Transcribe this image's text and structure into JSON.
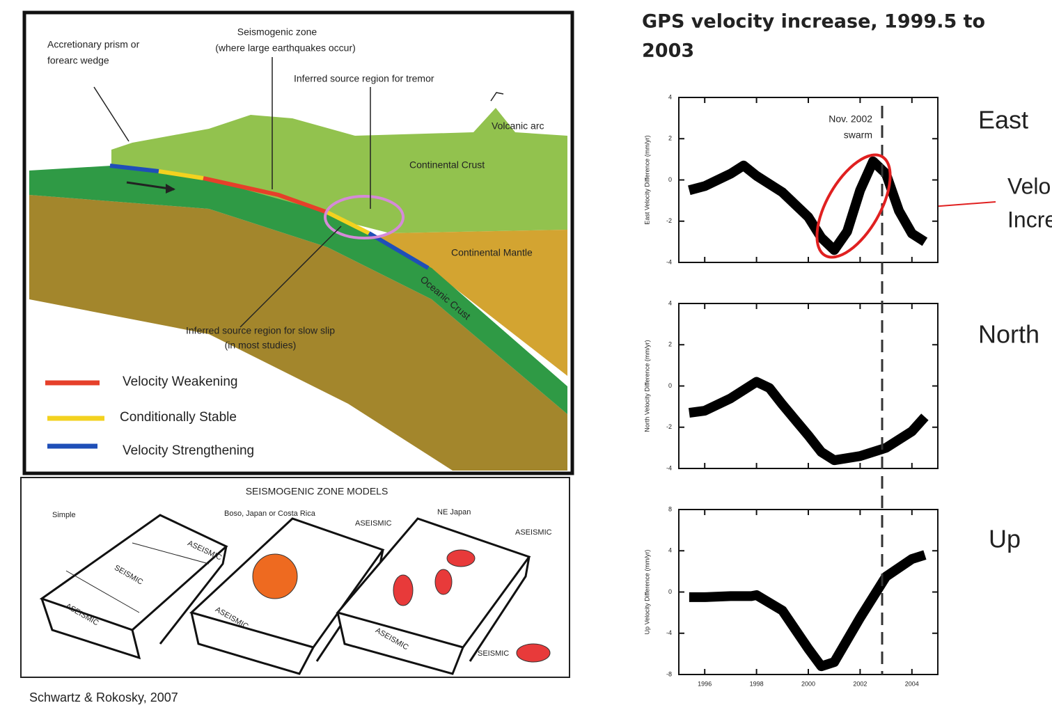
{
  "slide": {
    "title": [
      "GPS velocity increase, 1999.5 to",
      "2003"
    ],
    "credit": "Schwartz & Rokosky, 2007",
    "callout": [
      "Velo",
      "Incre"
    ]
  },
  "diagram": {
    "labels": {
      "prism": [
        "Accretionary prism or",
        "forearc  wedge"
      ],
      "seismogenic": [
        "Seismogenic zone",
        "(where large earthquakes occur)"
      ],
      "tremor": "Inferred source region for tremor",
      "volcanic": "Volcanic arc",
      "crust": "Continental Crust",
      "mantle": "Continental Mantle",
      "oceanic": "Oceanic Crust",
      "slowslip": [
        "Inferred source region for slow slip",
        "(in most studies)"
      ]
    },
    "legend": [
      "Velocity Weakening",
      "Conditionally Stable",
      "Velocity Strengthening"
    ],
    "models": {
      "title": "SEISMOGENIC ZONE MODELS",
      "simple": "Simple",
      "boso": "Boso, Japan or Costa Rica",
      "nejapan": "NE Japan",
      "aseismic": "ASEISMIC",
      "seismic": "SEISMIC"
    }
  },
  "chart_data": [
    {
      "type": "line",
      "panel_label": "East",
      "ylabel": "East Velocity Difference (mm/yr)",
      "x": [
        1995.4,
        1996,
        1997,
        1997.5,
        1998,
        1999,
        2000,
        2000.5,
        2001,
        2001.5,
        2002,
        2002.5,
        2003,
        2003.5,
        2004,
        2004.5
      ],
      "values": [
        -0.5,
        -0.3,
        0.3,
        0.7,
        0.2,
        -0.6,
        -1.8,
        -2.8,
        -3.4,
        -2.5,
        -0.5,
        0.9,
        0.3,
        -1.5,
        -2.6,
        -3.0
      ],
      "color": "#000000",
      "xlim": [
        1995,
        2005
      ],
      "ylim": [
        -4,
        4
      ],
      "xticks": [
        1996,
        1998,
        2000,
        2002,
        2004
      ],
      "yticks": [
        -4,
        -2,
        0,
        2,
        4
      ],
      "xtick_labels": false,
      "annotation": {
        "text": [
          "Nov. 2002",
          "swarm"
        ],
        "x": 2002.85
      }
    },
    {
      "type": "line",
      "panel_label": "North",
      "ylabel": "North Velocity Difference (mm/yr)",
      "x": [
        1995.4,
        1996,
        1997,
        1998,
        1998.5,
        1999,
        2000,
        2000.5,
        2001,
        2002,
        2003,
        2004,
        2004.5
      ],
      "values": [
        -1.3,
        -1.2,
        -0.6,
        0.2,
        -0.1,
        -0.9,
        -2.4,
        -3.2,
        -3.6,
        -3.4,
        -3.0,
        -2.2,
        -1.5
      ],
      "color": "#000000",
      "xlim": [
        1995,
        2005
      ],
      "ylim": [
        -4,
        4
      ],
      "xticks": [
        1996,
        1998,
        2000,
        2002,
        2004
      ],
      "yticks": [
        -4,
        -2,
        0,
        2,
        4
      ],
      "xtick_labels": false
    },
    {
      "type": "line",
      "panel_label": "Up",
      "ylabel": "Up Velocity Difference (mm/yr)",
      "x": [
        1995.4,
        1996,
        1997,
        1997.8,
        1998,
        1999,
        2000,
        2000.5,
        2001,
        2002,
        2003,
        2004,
        2004.5
      ],
      "values": [
        -0.5,
        -0.5,
        -0.4,
        -0.4,
        -0.3,
        -1.8,
        -5.5,
        -7.2,
        -6.8,
        -2.5,
        1.5,
        3.2,
        3.6
      ],
      "color": "#000000",
      "xlim": [
        1995,
        2005
      ],
      "ylim": [
        -8,
        8
      ],
      "xticks": [
        1996,
        1998,
        2000,
        2002,
        2004
      ],
      "yticks": [
        -8,
        -4,
        0,
        4,
        8
      ],
      "xtick_labels": true
    }
  ]
}
